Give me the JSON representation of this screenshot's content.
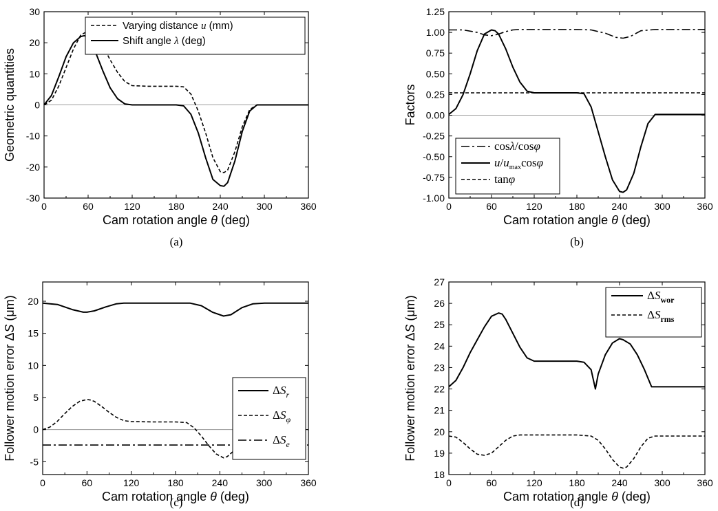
{
  "chart_data": [
    {
      "type": "line",
      "caption": "(a)",
      "xlabel": "Cam rotation angle θ (deg)",
      "ylabel": "Geometric quantities",
      "xlim": [
        0,
        360
      ],
      "ylim": [
        -30,
        30
      ],
      "xticks": [
        0,
        60,
        120,
        180,
        240,
        300,
        360
      ],
      "yticks": [
        -30,
        -20,
        -10,
        0,
        10,
        20,
        30
      ],
      "xtick_labels": [
        "0",
        "60",
        "120",
        "180",
        "240",
        "300",
        "360"
      ],
      "ytick_labels": [
        "-30",
        "-20",
        "-10",
        "0",
        "10",
        "20",
        "30"
      ],
      "legend_position": "top-right",
      "zero_line": true,
      "series": [
        {
          "name": "Varying distance u (mm)",
          "style": "dashed",
          "x": [
            0,
            10,
            20,
            30,
            40,
            50,
            60,
            70,
            80,
            90,
            100,
            110,
            120,
            140,
            160,
            180,
            190,
            200,
            210,
            220,
            230,
            240,
            245,
            250,
            260,
            270,
            280,
            290,
            300,
            330,
            360
          ],
          "y": [
            0,
            1.5,
            6,
            12,
            18,
            22.5,
            23.8,
            22.5,
            19,
            14.5,
            10.5,
            7.5,
            6.2,
            6,
            6,
            6,
            5.8,
            3.5,
            -2,
            -9,
            -17,
            -21.5,
            -21.8,
            -21,
            -15,
            -7,
            -1.5,
            0,
            0,
            0,
            0
          ]
        },
        {
          "name": "Shift angle λ (deg)",
          "style": "solid",
          "x": [
            0,
            10,
            20,
            30,
            40,
            50,
            55,
            60,
            70,
            80,
            90,
            100,
            110,
            120,
            140,
            160,
            180,
            190,
            200,
            210,
            220,
            230,
            240,
            245,
            250,
            260,
            270,
            280,
            290,
            300,
            330,
            360
          ],
          "y": [
            0,
            3,
            9,
            15.5,
            20,
            22,
            22.3,
            21.5,
            17,
            11,
            5.5,
            2,
            0.3,
            0,
            0,
            0,
            0,
            -0.3,
            -3,
            -9,
            -17,
            -24,
            -26,
            -26.2,
            -25,
            -18,
            -8.5,
            -2,
            0,
            0,
            0,
            0
          ]
        }
      ]
    },
    {
      "type": "line",
      "caption": "(b)",
      "xlabel": "Cam rotation angle θ (deg)",
      "ylabel": "Factors",
      "xlim": [
        0,
        360
      ],
      "ylim": [
        -1.0,
        1.25
      ],
      "xticks": [
        0,
        60,
        120,
        180,
        240,
        300,
        360
      ],
      "yticks": [
        -1.0,
        -0.75,
        -0.5,
        -0.25,
        0,
        0.25,
        0.5,
        0.75,
        1.0,
        1.25
      ],
      "xtick_labels": [
        "0",
        "60",
        "120",
        "180",
        "240",
        "300",
        "360"
      ],
      "ytick_labels": [
        "-1.00",
        "-0.75",
        "-0.50",
        "-0.25",
        "0.00",
        "0.25",
        "0.50",
        "0.75",
        "1.00",
        "1.25"
      ],
      "legend_position": "bottom-left",
      "zero_line": true,
      "series": [
        {
          "name": "cosλ/cosφ",
          "style": "dashdot",
          "x": [
            0,
            20,
            40,
            50,
            60,
            70,
            80,
            90,
            100,
            120,
            180,
            200,
            220,
            235,
            245,
            255,
            270,
            290,
            360
          ],
          "y": [
            1.03,
            1.03,
            1.0,
            0.97,
            0.96,
            0.98,
            1.01,
            1.03,
            1.035,
            1.035,
            1.035,
            1.03,
            0.99,
            0.94,
            0.93,
            0.95,
            1.02,
            1.035,
            1.035
          ]
        },
        {
          "name": "u/u_max cosφ",
          "style": "solid",
          "x": [
            0,
            10,
            20,
            30,
            40,
            50,
            60,
            65,
            70,
            80,
            90,
            100,
            110,
            120,
            150,
            180,
            190,
            200,
            210,
            220,
            230,
            240,
            245,
            250,
            260,
            270,
            280,
            290,
            300,
            330,
            360
          ],
          "y": [
            0.01,
            0.08,
            0.25,
            0.5,
            0.78,
            0.98,
            1.03,
            1.02,
            0.98,
            0.8,
            0.58,
            0.4,
            0.29,
            0.27,
            0.27,
            0.27,
            0.26,
            0.1,
            -0.2,
            -0.5,
            -0.78,
            -0.92,
            -0.93,
            -0.9,
            -0.7,
            -0.38,
            -0.1,
            0.01,
            0.01,
            0.01,
            0.01
          ]
        },
        {
          "name": "tanφ",
          "style": "dashed",
          "x": [
            0,
            360
          ],
          "y": [
            0.27,
            0.27
          ]
        }
      ]
    },
    {
      "type": "line",
      "caption": "(c)",
      "xlabel": "Cam rotation angle θ (deg)",
      "ylabel": "Follower motion error ΔS (μm)",
      "xlim": [
        0,
        360
      ],
      "ylim": [
        -7,
        23
      ],
      "xticks": [
        0,
        60,
        120,
        180,
        240,
        300,
        360
      ],
      "yticks": [
        -5,
        0,
        5,
        10,
        15,
        20
      ],
      "xtick_labels": [
        "0",
        "60",
        "120",
        "180",
        "240",
        "300",
        "360"
      ],
      "ytick_labels": [
        "-5",
        "0",
        "5",
        "10",
        "15",
        "20"
      ],
      "legend_position": "center-right",
      "zero_line": true,
      "series": [
        {
          "name": "ΔS_r",
          "style": "solid",
          "x": [
            0,
            20,
            40,
            55,
            60,
            70,
            85,
            100,
            110,
            120,
            180,
            200,
            215,
            230,
            245,
            255,
            270,
            285,
            300,
            360
          ],
          "y": [
            19.7,
            19.5,
            18.7,
            18.3,
            18.3,
            18.5,
            19.1,
            19.6,
            19.7,
            19.7,
            19.7,
            19.7,
            19.3,
            18.3,
            17.7,
            17.9,
            19.0,
            19.6,
            19.7,
            19.7
          ]
        },
        {
          "name": "ΔS_φ",
          "style": "dashed",
          "x": [
            0,
            10,
            20,
            30,
            40,
            50,
            60,
            65,
            70,
            80,
            90,
            100,
            110,
            120,
            150,
            180,
            195,
            205,
            215,
            225,
            235,
            245,
            250,
            260,
            270,
            280,
            290,
            300,
            330,
            360
          ],
          "y": [
            0,
            0.4,
            1.3,
            2.5,
            3.6,
            4.4,
            4.7,
            4.6,
            4.4,
            3.6,
            2.7,
            1.9,
            1.4,
            1.25,
            1.2,
            1.2,
            1.1,
            0.3,
            -1.0,
            -2.5,
            -3.8,
            -4.4,
            -4.2,
            -3.2,
            -1.5,
            -0.3,
            0,
            0,
            0,
            0
          ]
        },
        {
          "name": "ΔS_e",
          "style": "dashdot",
          "x": [
            0,
            360
          ],
          "y": [
            -2.4,
            -2.4
          ]
        }
      ]
    },
    {
      "type": "line",
      "caption": "(d)",
      "xlabel": "Cam rotation angle θ (deg)",
      "ylabel": "Follower motion error ΔS (μm)",
      "xlim": [
        0,
        360
      ],
      "ylim": [
        18,
        27
      ],
      "xticks": [
        0,
        60,
        120,
        180,
        240,
        300,
        360
      ],
      "yticks": [
        18,
        19,
        20,
        21,
        22,
        23,
        24,
        25,
        26,
        27
      ],
      "xtick_labels": [
        "0",
        "60",
        "120",
        "180",
        "240",
        "300",
        "360"
      ],
      "ytick_labels": [
        "18",
        "19",
        "20",
        "21",
        "22",
        "23",
        "24",
        "25",
        "26",
        "27"
      ],
      "legend_position": "top-right",
      "zero_line": false,
      "series": [
        {
          "name": "ΔS_wor",
          "style": "solid",
          "x": [
            0,
            10,
            20,
            30,
            40,
            50,
            60,
            70,
            75,
            80,
            90,
            100,
            110,
            120,
            150,
            180,
            190,
            200,
            206,
            210,
            220,
            230,
            240,
            245,
            255,
            265,
            275,
            285,
            290,
            300,
            360
          ],
          "y": [
            22.1,
            22.4,
            23.0,
            23.7,
            24.3,
            24.9,
            25.4,
            25.55,
            25.5,
            25.25,
            24.6,
            23.95,
            23.45,
            23.3,
            23.3,
            23.3,
            23.25,
            22.9,
            22.0,
            22.7,
            23.6,
            24.15,
            24.35,
            24.3,
            24.1,
            23.6,
            22.9,
            22.1,
            22.1,
            22.1,
            22.1
          ]
        },
        {
          "name": "ΔS_rms",
          "style": "dashed",
          "x": [
            0,
            10,
            20,
            30,
            40,
            50,
            60,
            70,
            80,
            90,
            100,
            120,
            180,
            200,
            210,
            220,
            230,
            240,
            245,
            250,
            260,
            270,
            280,
            290,
            300,
            360
          ],
          "y": [
            19.8,
            19.75,
            19.5,
            19.2,
            18.95,
            18.9,
            19.0,
            19.3,
            19.6,
            19.8,
            19.85,
            19.85,
            19.85,
            19.8,
            19.6,
            19.2,
            18.7,
            18.35,
            18.3,
            18.35,
            18.75,
            19.3,
            19.7,
            19.8,
            19.8,
            19.8
          ]
        }
      ]
    }
  ]
}
